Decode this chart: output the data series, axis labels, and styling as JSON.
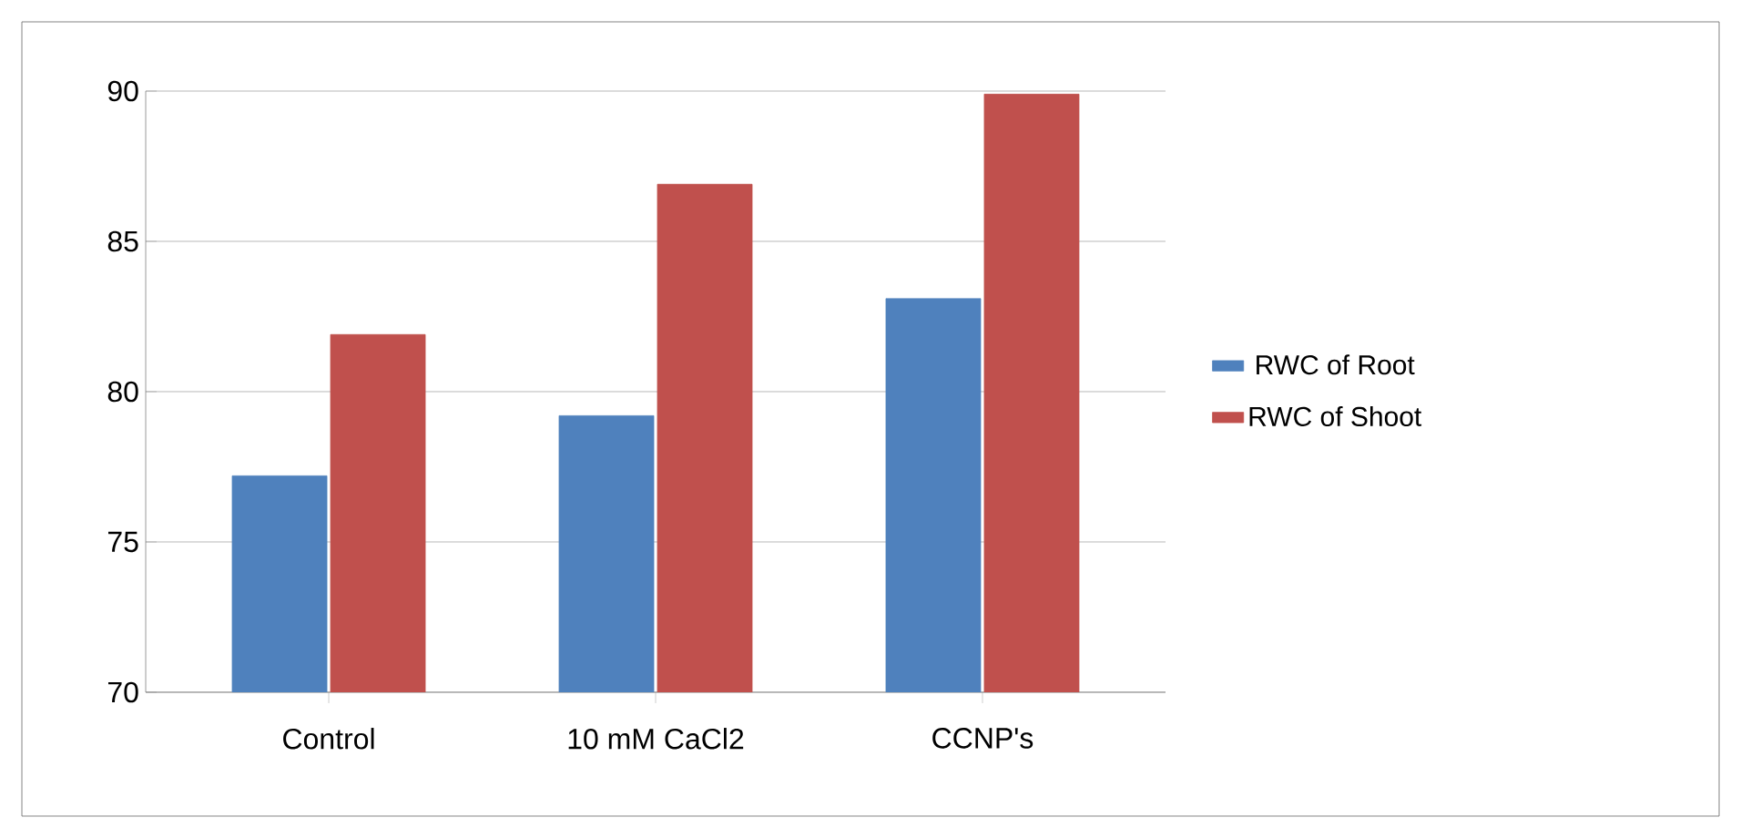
{
  "chart_data": {
    "type": "bar",
    "categories": [
      "Control",
      "10 mM CaCl2",
      "CCNP's"
    ],
    "series": [
      {
        "name": "RWC of Root",
        "color": "#4f81bd",
        "values": [
          77.2,
          79.2,
          83.1
        ]
      },
      {
        "name": "RWC of Shoot",
        "color": "#c0504d",
        "values": [
          81.9,
          86.9,
          89.9
        ]
      }
    ],
    "ylim": [
      70,
      90
    ],
    "yticks": [
      70,
      75,
      80,
      85,
      90
    ],
    "grid": "y",
    "legend": "right"
  }
}
